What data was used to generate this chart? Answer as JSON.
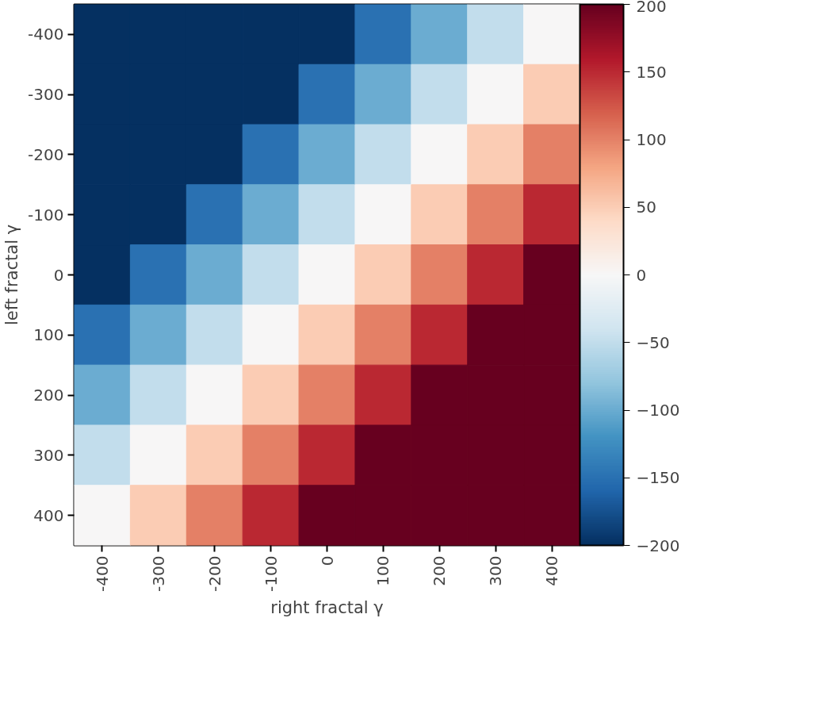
{
  "chart_data": {
    "type": "heatmap",
    "xlabel": "right fractal γ",
    "ylabel": "left fractal γ",
    "categories": [
      "-400",
      "-300",
      "-200",
      "-100",
      "0",
      "100",
      "200",
      "300",
      "400"
    ],
    "y_categories": [
      "-400",
      "-300",
      "-200",
      "-100",
      "0",
      "100",
      "200",
      "300",
      "400"
    ],
    "cells": [
      [
        -200,
        -200,
        -200,
        -200,
        -200,
        -150,
        -100,
        -50,
        0
      ],
      [
        -200,
        -200,
        -200,
        -200,
        -150,
        -100,
        -50,
        0,
        50
      ],
      [
        -200,
        -200,
        -200,
        -150,
        -100,
        -50,
        0,
        50,
        100
      ],
      [
        -200,
        -200,
        -150,
        -100,
        -50,
        0,
        50,
        100,
        150
      ],
      [
        -200,
        -150,
        -100,
        -50,
        0,
        50,
        100,
        150,
        200
      ],
      [
        -150,
        -100,
        -50,
        0,
        50,
        100,
        150,
        200,
        200
      ],
      [
        -100,
        -50,
        0,
        50,
        100,
        150,
        200,
        200,
        200
      ],
      [
        -50,
        0,
        50,
        100,
        150,
        200,
        200,
        200,
        200
      ],
      [
        0,
        50,
        100,
        150,
        200,
        200,
        200,
        200,
        200
      ]
    ],
    "clim": [
      -200,
      200
    ],
    "cticks": [
      {
        "value": -200,
        "label": "−200"
      },
      {
        "value": -150,
        "label": "−150"
      },
      {
        "value": -100,
        "label": "−100"
      },
      {
        "value": -50,
        "label": "−50"
      },
      0,
      50,
      100,
      150,
      200
    ]
  }
}
